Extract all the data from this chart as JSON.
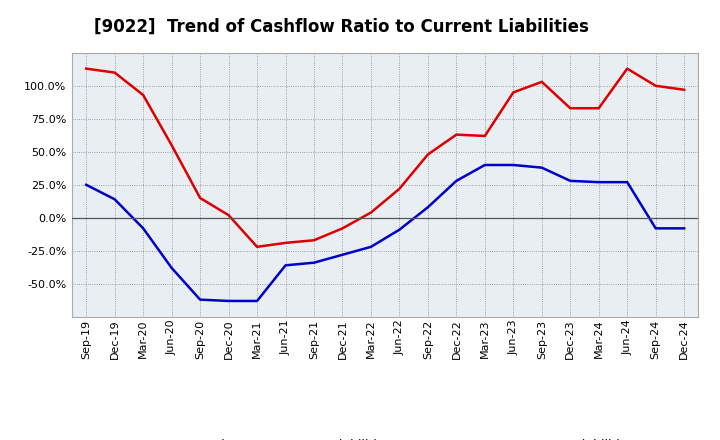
{
  "title": "[9022]  Trend of Cashflow Ratio to Current Liabilities",
  "x_labels": [
    "Sep-19",
    "Dec-19",
    "Mar-20",
    "Jun-20",
    "Sep-20",
    "Dec-20",
    "Mar-21",
    "Jun-21",
    "Sep-21",
    "Dec-21",
    "Mar-22",
    "Jun-22",
    "Sep-22",
    "Dec-22",
    "Mar-23",
    "Jun-23",
    "Sep-23",
    "Dec-23",
    "Mar-24",
    "Jun-24",
    "Sep-24",
    "Dec-24"
  ],
  "operating_cf": [
    113,
    110,
    93,
    55,
    15,
    2,
    -22,
    -19,
    -17,
    -8,
    4,
    22,
    48,
    63,
    62,
    95,
    103,
    83,
    83,
    113,
    100,
    97
  ],
  "free_cf": [
    25,
    14,
    -8,
    -38,
    -62,
    -63,
    -63,
    -36,
    -34,
    -28,
    -22,
    -9,
    8,
    28,
    40,
    40,
    38,
    28,
    27,
    27,
    -8,
    -8
  ],
  "ylim": [
    -75,
    125
  ],
  "yticks": [
    -50,
    -25,
    0,
    25,
    50,
    75,
    100
  ],
  "operating_color": "#dd0000",
  "free_color": "#0000cc",
  "bg_color": "#e8eef2",
  "grid_color": "#888888",
  "legend_op": "Operating CF to Current Liabilities",
  "legend_free": "Free CF to Current Liabilities",
  "title_fontsize": 12,
  "tick_fontsize": 8,
  "legend_fontsize": 9
}
